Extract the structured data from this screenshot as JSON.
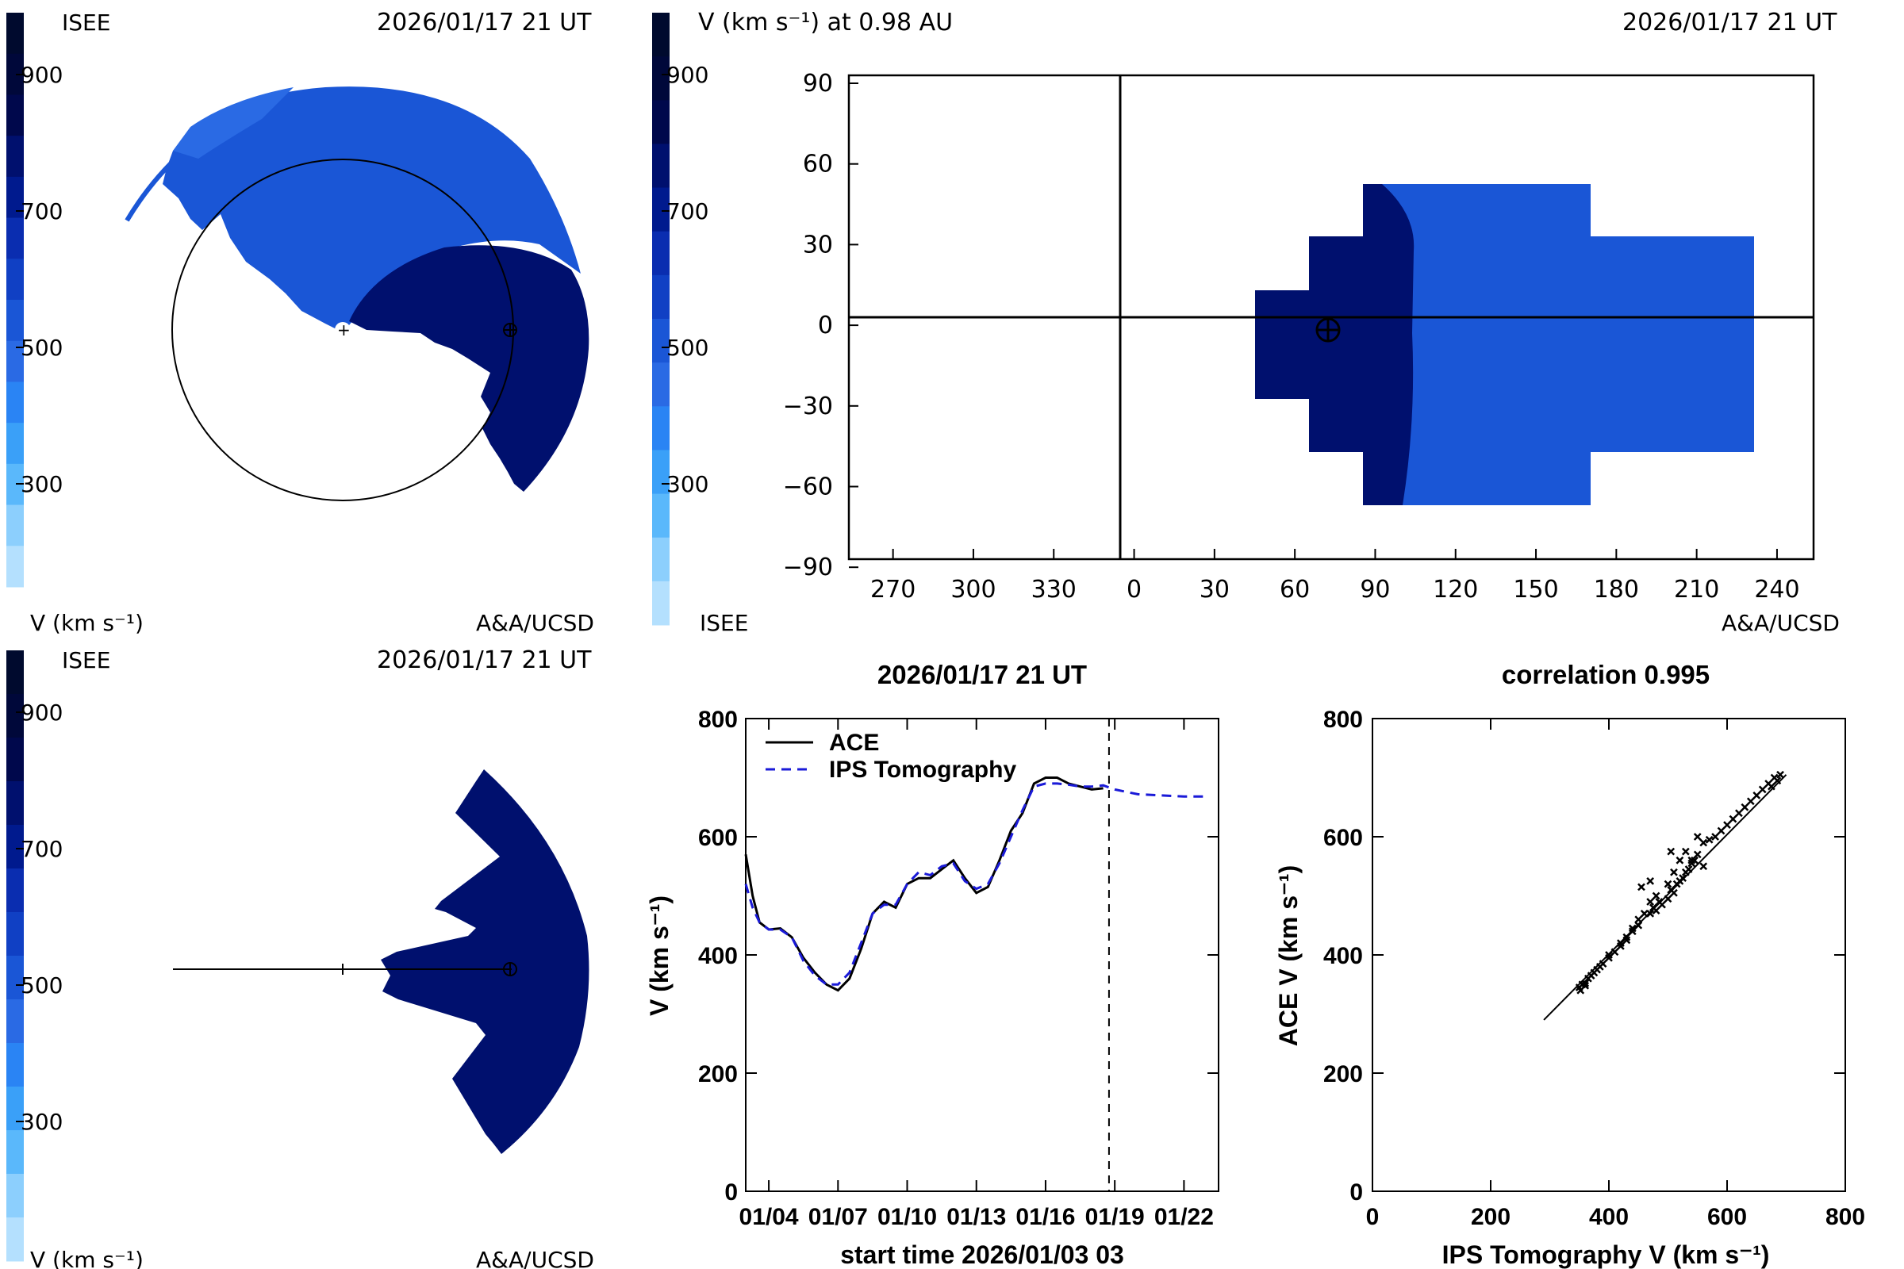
{
  "colorbar": {
    "ticks": [
      "900",
      "700",
      "500",
      "300"
    ],
    "colors": [
      "#000a2e",
      "#00083a",
      "#00084c",
      "#00106e",
      "#001a8e",
      "#0a2db0",
      "#1040c4",
      "#1a56d6",
      "#2a6ae4",
      "#2a84f4",
      "#3aa0f8",
      "#5ab8fb",
      "#8ccffd",
      "#b4e0fe"
    ]
  },
  "top_left": {
    "top_left_text": "ISEE",
    "timestamp": "2026/01/17 21 UT",
    "bottom_left_text": "V (km s⁻¹)",
    "bottom_right_text": "A&A/UCSD"
  },
  "top_right": {
    "title_left": "V (km s⁻¹) at 0.98 AU",
    "timestamp": "2026/01/17 21 UT",
    "bottom_left_text": "ISEE",
    "bottom_right_text": "A&A/UCSD",
    "x_ticks": [
      "270",
      "300",
      "330",
      "0",
      "30",
      "60",
      "90",
      "120",
      "150",
      "180",
      "210",
      "240"
    ],
    "y_ticks": [
      "90",
      "60",
      "30",
      "0",
      "−30",
      "−60",
      "−90"
    ]
  },
  "bottom_left": {
    "top_left_text": "ISEE",
    "timestamp": "2026/01/17 21 UT",
    "bottom_left_text": "V (km s⁻¹)",
    "bottom_right_text": "A&A/UCSD"
  },
  "chart_data": [
    {
      "type": "line",
      "title": "2026/01/17 21 UT",
      "xlabel": "start time 2026/01/03 03",
      "ylabel": "V (km s⁻¹)",
      "x_tick_labels": [
        "01/04",
        "01/07",
        "01/10",
        "01/13",
        "01/16",
        "01/19",
        "01/22"
      ],
      "y_ticks": [
        0,
        200,
        400,
        600,
        800
      ],
      "xlim": [
        0,
        20.5
      ],
      "ylim": [
        0,
        800
      ],
      "vline_day": 15.75,
      "series": [
        {
          "name": "ACE",
          "style": "solid",
          "color": "#000000",
          "x": [
            0,
            0.3,
            0.6,
            1,
            1.5,
            2,
            2.5,
            3,
            3.5,
            4,
            4.5,
            5,
            5.5,
            6,
            6.5,
            7,
            7.5,
            8,
            8.5,
            9,
            9.5,
            10,
            10.5,
            11,
            11.5,
            12,
            12.5,
            13,
            13.5,
            14,
            14.5,
            15,
            15.5
          ],
          "y": [
            570,
            500,
            455,
            443,
            445,
            430,
            395,
            370,
            350,
            340,
            360,
            410,
            470,
            490,
            480,
            520,
            530,
            530,
            545,
            560,
            530,
            505,
            515,
            560,
            610,
            640,
            690,
            700,
            700,
            690,
            685,
            680,
            682
          ]
        },
        {
          "name": "IPS Tomography",
          "style": "dashed",
          "color": "#1a1ad8",
          "x": [
            0,
            0.3,
            0.6,
            1,
            1.5,
            2,
            2.5,
            3,
            3.5,
            4,
            4.5,
            5,
            5.5,
            6,
            6.5,
            7,
            7.5,
            8,
            8.5,
            9,
            9.5,
            10,
            10.5,
            11,
            11.5,
            12,
            12.5,
            13,
            13.5,
            14,
            14.5,
            15,
            15.5,
            16,
            17,
            18,
            19,
            20
          ],
          "y": [
            520,
            480,
            455,
            443,
            443,
            430,
            390,
            365,
            350,
            350,
            370,
            420,
            470,
            485,
            485,
            520,
            540,
            535,
            550,
            555,
            525,
            512,
            520,
            555,
            600,
            645,
            685,
            690,
            690,
            688,
            685,
            685,
            687,
            680,
            672,
            670,
            668,
            668
          ]
        }
      ]
    },
    {
      "type": "scatter",
      "title": "correlation 0.995",
      "xlabel": "IPS Tomography V (km s⁻¹)",
      "ylabel": "ACE V (km s⁻¹)",
      "x_ticks": [
        0,
        200,
        400,
        600,
        800
      ],
      "y_ticks": [
        0,
        200,
        400,
        600,
        800
      ],
      "xlim": [
        0,
        800
      ],
      "ylim": [
        0,
        800
      ],
      "fit_line": [
        [
          290,
          290
        ],
        [
          700,
          705
        ]
      ],
      "points": [
        [
          350,
          345
        ],
        [
          355,
          350
        ],
        [
          360,
          352
        ],
        [
          365,
          360
        ],
        [
          370,
          365
        ],
        [
          380,
          375
        ],
        [
          390,
          385
        ],
        [
          400,
          395
        ],
        [
          410,
          405
        ],
        [
          420,
          415
        ],
        [
          430,
          430
        ],
        [
          440,
          440
        ],
        [
          450,
          450
        ],
        [
          460,
          470
        ],
        [
          470,
          470
        ],
        [
          475,
          480
        ],
        [
          480,
          475
        ],
        [
          485,
          490
        ],
        [
          490,
          485
        ],
        [
          500,
          495
        ],
        [
          505,
          510
        ],
        [
          510,
          505
        ],
        [
          515,
          520
        ],
        [
          520,
          525
        ],
        [
          525,
          530
        ],
        [
          530,
          540
        ],
        [
          535,
          545
        ],
        [
          540,
          555
        ],
        [
          545,
          560
        ],
        [
          550,
          570
        ],
        [
          560,
          550
        ],
        [
          480,
          500
        ],
        [
          470,
          490
        ],
        [
          500,
          520
        ],
        [
          510,
          540
        ],
        [
          520,
          560
        ],
        [
          530,
          575
        ],
        [
          540,
          560
        ],
        [
          550,
          600
        ],
        [
          560,
          590
        ],
        [
          570,
          595
        ],
        [
          580,
          600
        ],
        [
          590,
          610
        ],
        [
          600,
          620
        ],
        [
          610,
          630
        ],
        [
          620,
          640
        ],
        [
          630,
          650
        ],
        [
          640,
          660
        ],
        [
          650,
          670
        ],
        [
          660,
          680
        ],
        [
          670,
          690
        ],
        [
          680,
          700
        ],
        [
          690,
          705
        ],
        [
          685,
          695
        ],
        [
          675,
          685
        ],
        [
          450,
          460
        ],
        [
          440,
          445
        ],
        [
          430,
          425
        ],
        [
          420,
          420
        ],
        [
          400,
          400
        ],
        [
          385,
          380
        ],
        [
          375,
          370
        ],
        [
          360,
          348
        ],
        [
          352,
          340
        ],
        [
          505,
          575
        ],
        [
          470,
          525
        ],
        [
          455,
          515
        ]
      ]
    }
  ]
}
